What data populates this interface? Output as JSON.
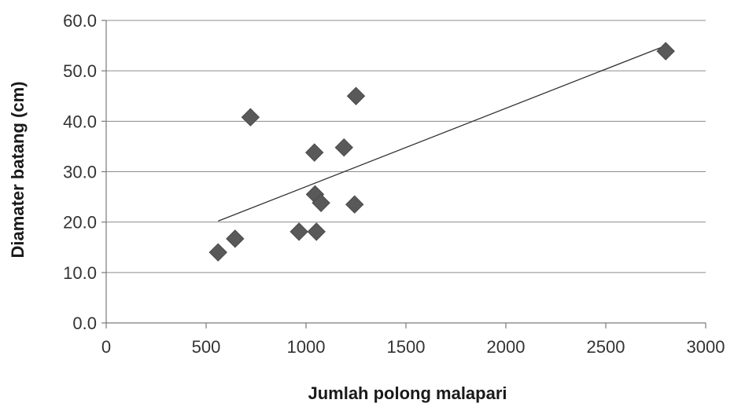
{
  "chart_data": {
    "type": "scatter",
    "title": "",
    "xlabel": "Jumlah polong malapari",
    "ylabel": "Diamater batang (cm)",
    "xlim": [
      0,
      3000
    ],
    "ylim": [
      0,
      60
    ],
    "x_ticks": [
      "0",
      "500",
      "1000",
      "1500",
      "2000",
      "2500",
      "3000"
    ],
    "y_ticks": [
      "0.0",
      "10.0",
      "20.0",
      "30.0",
      "40.0",
      "50.0",
      "60.0"
    ],
    "grid": "horizontal",
    "legend": "none",
    "marker": "diamond",
    "marker_color": "#595959",
    "trendline": {
      "type": "linear",
      "from": [
        560,
        20.2
      ],
      "to": [
        2800,
        55.0
      ],
      "color": "#333333"
    },
    "points": [
      {
        "x": 560,
        "y": 14.0
      },
      {
        "x": 645,
        "y": 16.7
      },
      {
        "x": 722,
        "y": 40.8
      },
      {
        "x": 965,
        "y": 18.1
      },
      {
        "x": 1042,
        "y": 33.8
      },
      {
        "x": 1045,
        "y": 25.5
      },
      {
        "x": 1052,
        "y": 18.1
      },
      {
        "x": 1075,
        "y": 23.8
      },
      {
        "x": 1190,
        "y": 34.8
      },
      {
        "x": 1243,
        "y": 23.5
      },
      {
        "x": 1250,
        "y": 45.0
      },
      {
        "x": 2800,
        "y": 53.9
      }
    ]
  }
}
